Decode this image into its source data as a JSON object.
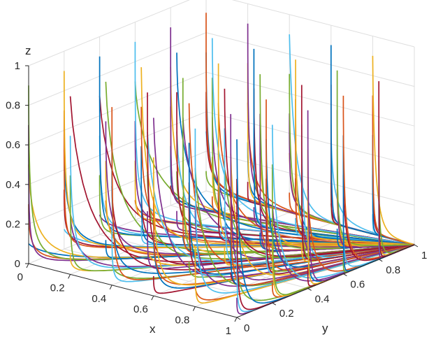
{
  "chart_data": {
    "type": "line",
    "subtype": "3d-trajectories",
    "title": "",
    "xlabel": "x",
    "ylabel": "y",
    "zlabel": "z",
    "xlim": [
      0,
      1
    ],
    "ylim": [
      0,
      1
    ],
    "zlim": [
      0,
      1
    ],
    "x_ticks": [
      "0",
      "0.2",
      "0.4",
      "0.6",
      "0.8",
      "1"
    ],
    "y_ticks": [
      "0",
      "0.2",
      "0.4",
      "0.6",
      "0.8",
      "1"
    ],
    "z_ticks": [
      "0",
      "0.2",
      "0.4",
      "0.6",
      "0.8",
      "1"
    ],
    "grid": true,
    "legend": "none",
    "convergence_point": {
      "x": 1,
      "y": 1,
      "z": 0
    },
    "colors": [
      "#0072BD",
      "#D95319",
      "#EDB120",
      "#7E2F8E",
      "#77AC30",
      "#4DBEEE",
      "#A2142F"
    ],
    "initial_x_values": [
      0,
      0.2,
      0.4,
      0.6,
      0.8,
      1
    ],
    "initial_y_values": [
      0,
      0.2,
      0.4,
      0.6,
      0.8,
      1
    ],
    "initial_z_values": [
      0.1,
      0.3,
      0.5,
      0.7,
      0.9
    ],
    "series_description": "Trajectories from a grid of initial conditions; each drops quickly toward z = 0 and converges to (1, 1, 0)."
  }
}
